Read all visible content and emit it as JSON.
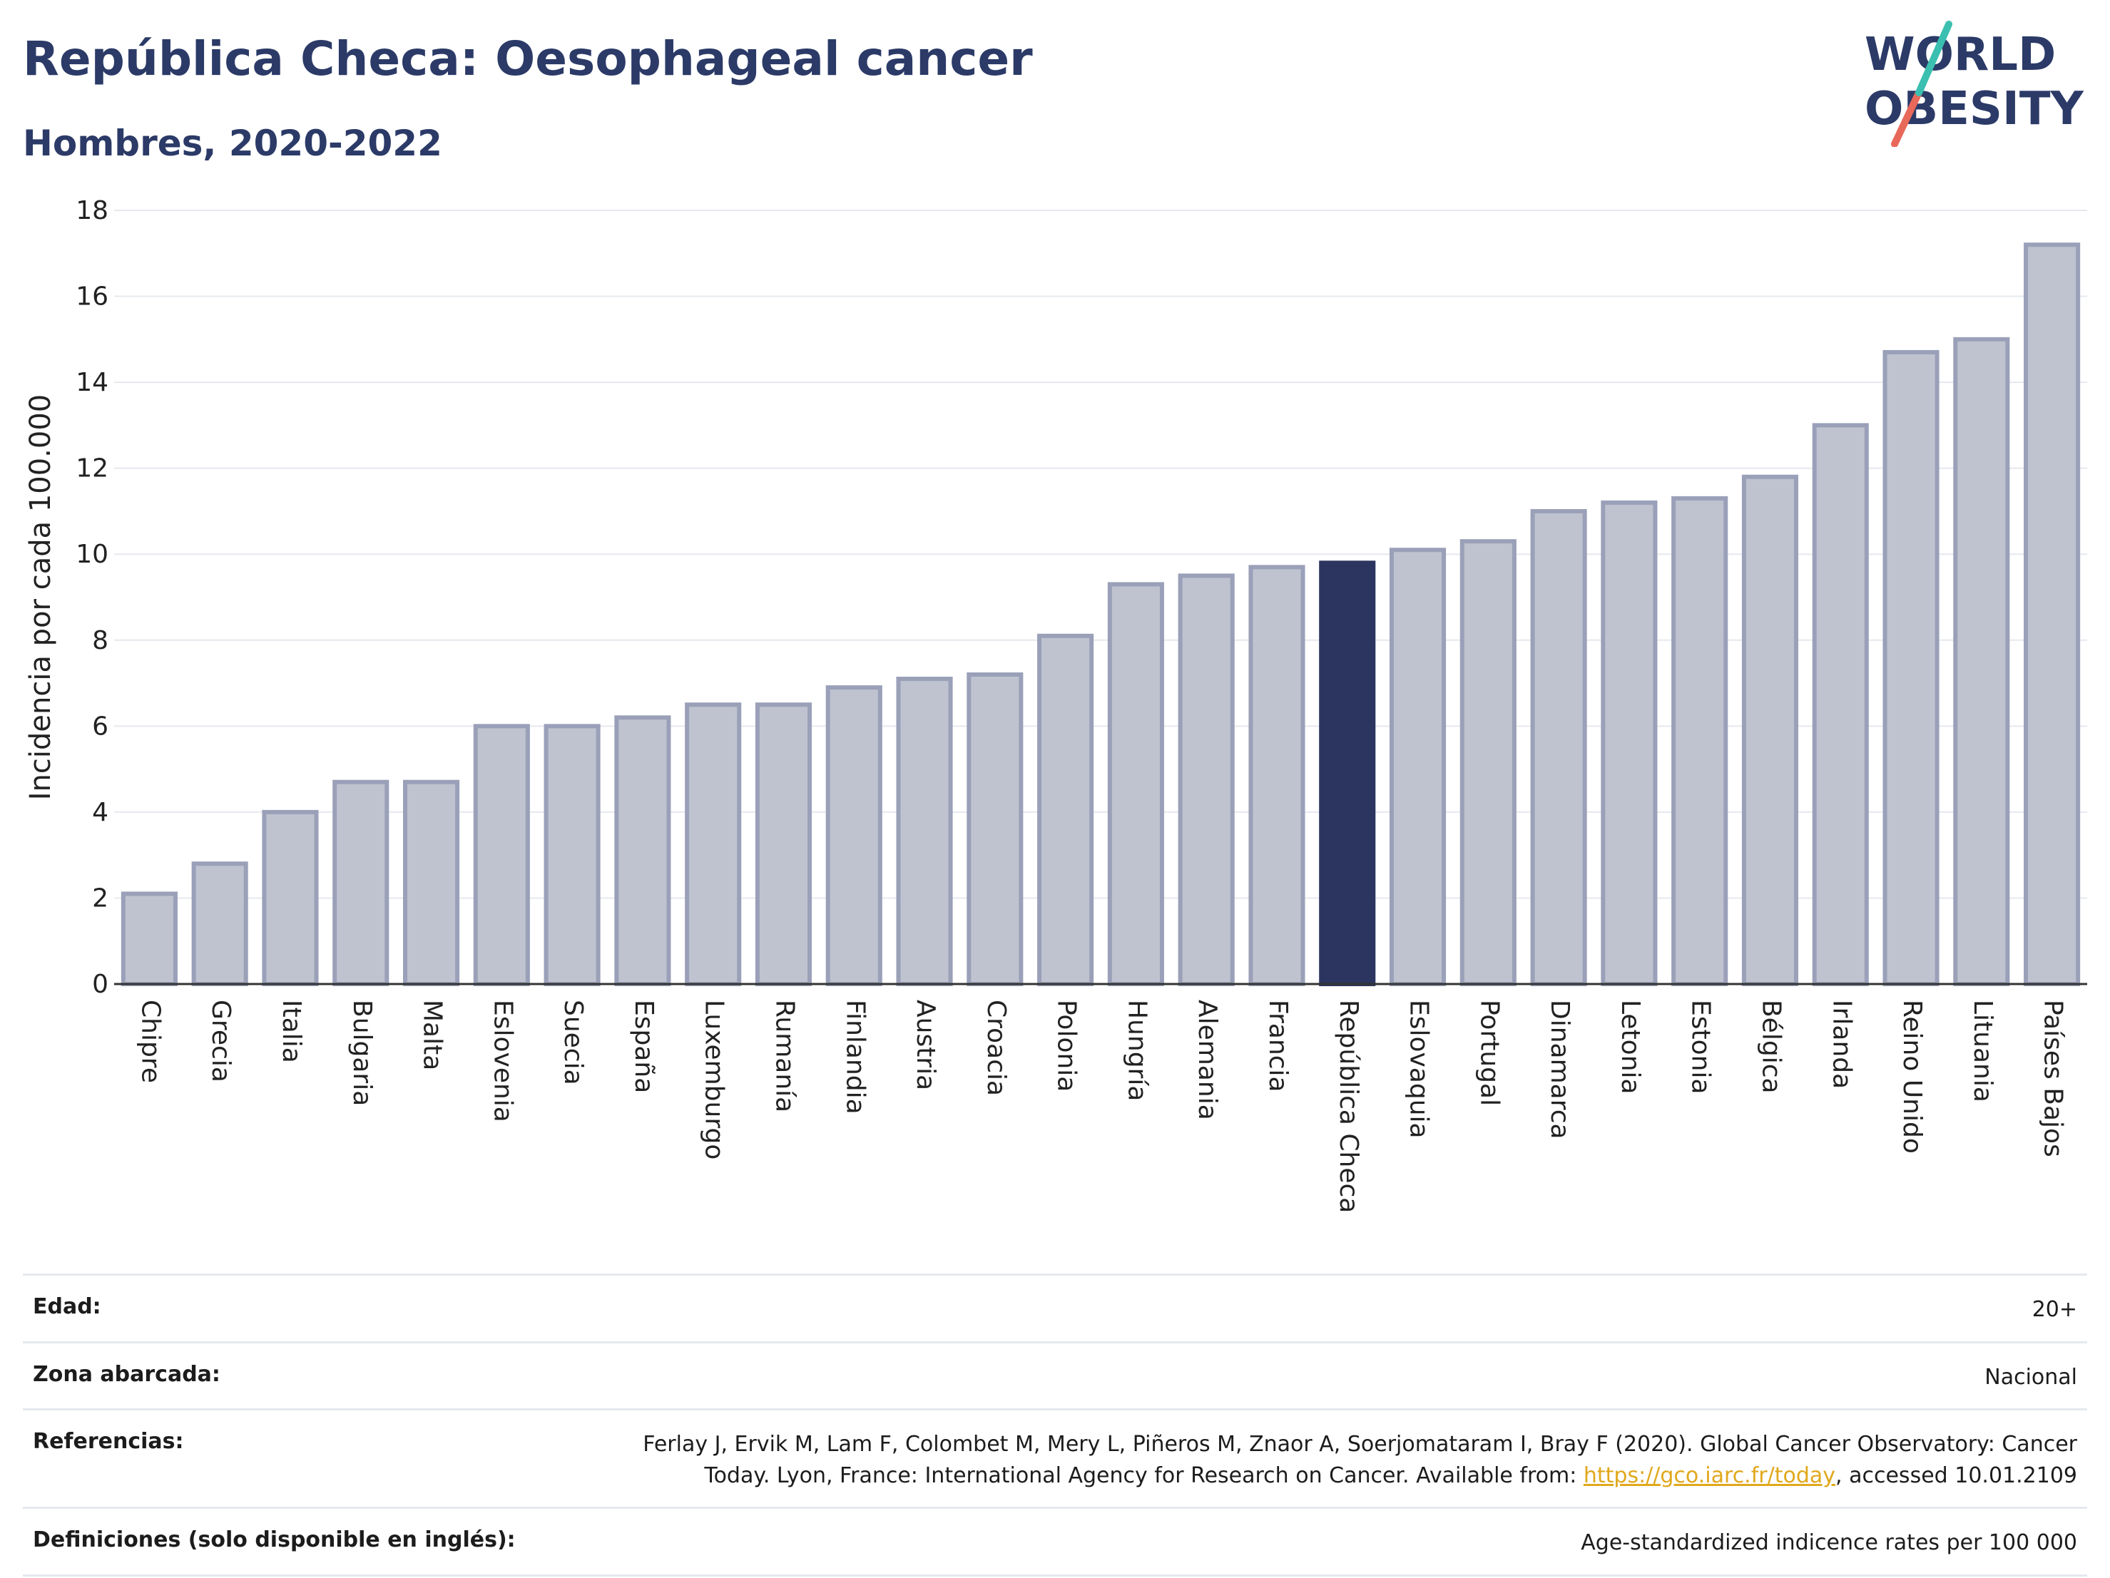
{
  "header": {
    "title": "República Checa: Oesophageal cancer",
    "subtitle": "Hombres, 2020-2022"
  },
  "logo": {
    "line1": "WORLD",
    "line2": "OBESITY",
    "colors": {
      "text": "#2b3a67",
      "slash_top": "#3bbfb0",
      "slash_bottom": "#e8685a"
    }
  },
  "chart_data": {
    "type": "bar",
    "ylabel": "Incidencia por cada 100.000",
    "ylim": [
      0,
      18
    ],
    "yticks": [
      0,
      2,
      4,
      6,
      8,
      10,
      12,
      14,
      16,
      18
    ],
    "grid": true,
    "highlight": "República Checa",
    "colors": {
      "bar": "#bfc3d0",
      "bar_border": "#9aa0b8",
      "highlight": "#2b3560"
    },
    "categories": [
      "Chipre",
      "Grecia",
      "Italia",
      "Bulgaria",
      "Malta",
      "Eslovenia",
      "Suecia",
      "España",
      "Luxemburgo",
      "Rumanía",
      "Finlandia",
      "Austria",
      "Croacia",
      "Polonia",
      "Hungría",
      "Alemania",
      "Francia",
      "República Checa",
      "Eslovaquia",
      "Portugal",
      "Dinamarca",
      "Letonia",
      "Estonia",
      "Bélgica",
      "Irlanda",
      "Reino Unido",
      "Lituania",
      "Países Bajos"
    ],
    "values": [
      2.1,
      2.8,
      4.0,
      4.7,
      4.7,
      6.0,
      6.0,
      6.2,
      6.5,
      6.5,
      6.9,
      7.1,
      7.2,
      8.1,
      9.3,
      9.5,
      9.7,
      9.8,
      10.1,
      10.3,
      11.0,
      11.2,
      11.3,
      11.8,
      13.0,
      14.7,
      15.0,
      17.2
    ]
  },
  "info": [
    {
      "label": "Edad:",
      "value": "20+"
    },
    {
      "label": "Zona abarcada:",
      "value": "Nacional"
    },
    {
      "label": "Referencias:",
      "value_line1": "Ferlay J, Ervik M, Lam F, Colombet M, Mery L, Piñeros M, Znaor A, Soerjomataram I, Bray F (2020). Global Cancer Observatory: Cancer",
      "value_pre": "Today. Lyon, France: International Agency for Research on Cancer. Available from: ",
      "link": "https://gco.iarc.fr/today",
      "value_post": ", accessed 10.01.2109"
    },
    {
      "label": "Definiciones (solo disponible en inglés):",
      "value": "Age-standardized indicence rates per 100 000"
    }
  ]
}
